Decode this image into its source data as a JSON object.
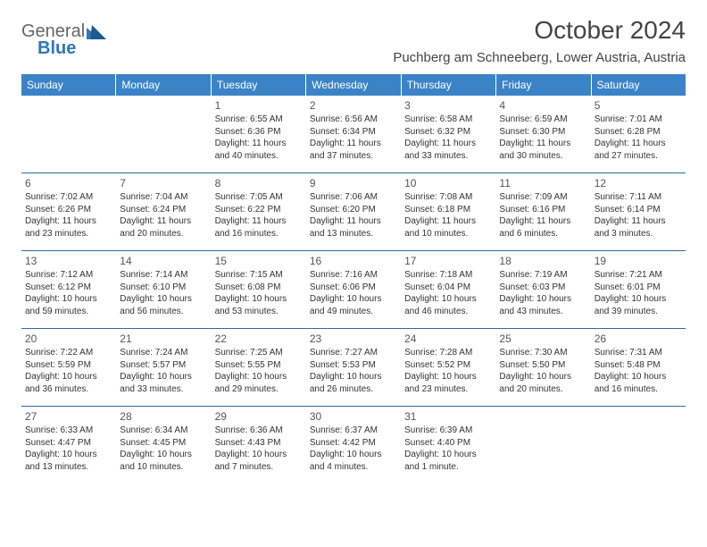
{
  "logo": {
    "word1": "General",
    "word2": "Blue"
  },
  "title": "October 2024",
  "location": "Puchberg am Schneeberg, Lower Austria, Austria",
  "colors": {
    "header_bg": "#3b83c7",
    "header_text": "#ffffff",
    "rule": "#2f6aa8",
    "body_text": "#333333",
    "logo_gray": "#707070",
    "logo_blue": "#2f77bb"
  },
  "weekdays": [
    "Sunday",
    "Monday",
    "Tuesday",
    "Wednesday",
    "Thursday",
    "Friday",
    "Saturday"
  ],
  "weeks": [
    [
      null,
      null,
      {
        "n": "1",
        "sr": "Sunrise: 6:55 AM",
        "ss": "Sunset: 6:36 PM",
        "d1": "Daylight: 11 hours",
        "d2": "and 40 minutes."
      },
      {
        "n": "2",
        "sr": "Sunrise: 6:56 AM",
        "ss": "Sunset: 6:34 PM",
        "d1": "Daylight: 11 hours",
        "d2": "and 37 minutes."
      },
      {
        "n": "3",
        "sr": "Sunrise: 6:58 AM",
        "ss": "Sunset: 6:32 PM",
        "d1": "Daylight: 11 hours",
        "d2": "and 33 minutes."
      },
      {
        "n": "4",
        "sr": "Sunrise: 6:59 AM",
        "ss": "Sunset: 6:30 PM",
        "d1": "Daylight: 11 hours",
        "d2": "and 30 minutes."
      },
      {
        "n": "5",
        "sr": "Sunrise: 7:01 AM",
        "ss": "Sunset: 6:28 PM",
        "d1": "Daylight: 11 hours",
        "d2": "and 27 minutes."
      }
    ],
    [
      {
        "n": "6",
        "sr": "Sunrise: 7:02 AM",
        "ss": "Sunset: 6:26 PM",
        "d1": "Daylight: 11 hours",
        "d2": "and 23 minutes."
      },
      {
        "n": "7",
        "sr": "Sunrise: 7:04 AM",
        "ss": "Sunset: 6:24 PM",
        "d1": "Daylight: 11 hours",
        "d2": "and 20 minutes."
      },
      {
        "n": "8",
        "sr": "Sunrise: 7:05 AM",
        "ss": "Sunset: 6:22 PM",
        "d1": "Daylight: 11 hours",
        "d2": "and 16 minutes."
      },
      {
        "n": "9",
        "sr": "Sunrise: 7:06 AM",
        "ss": "Sunset: 6:20 PM",
        "d1": "Daylight: 11 hours",
        "d2": "and 13 minutes."
      },
      {
        "n": "10",
        "sr": "Sunrise: 7:08 AM",
        "ss": "Sunset: 6:18 PM",
        "d1": "Daylight: 11 hours",
        "d2": "and 10 minutes."
      },
      {
        "n": "11",
        "sr": "Sunrise: 7:09 AM",
        "ss": "Sunset: 6:16 PM",
        "d1": "Daylight: 11 hours",
        "d2": "and 6 minutes."
      },
      {
        "n": "12",
        "sr": "Sunrise: 7:11 AM",
        "ss": "Sunset: 6:14 PM",
        "d1": "Daylight: 11 hours",
        "d2": "and 3 minutes."
      }
    ],
    [
      {
        "n": "13",
        "sr": "Sunrise: 7:12 AM",
        "ss": "Sunset: 6:12 PM",
        "d1": "Daylight: 10 hours",
        "d2": "and 59 minutes."
      },
      {
        "n": "14",
        "sr": "Sunrise: 7:14 AM",
        "ss": "Sunset: 6:10 PM",
        "d1": "Daylight: 10 hours",
        "d2": "and 56 minutes."
      },
      {
        "n": "15",
        "sr": "Sunrise: 7:15 AM",
        "ss": "Sunset: 6:08 PM",
        "d1": "Daylight: 10 hours",
        "d2": "and 53 minutes."
      },
      {
        "n": "16",
        "sr": "Sunrise: 7:16 AM",
        "ss": "Sunset: 6:06 PM",
        "d1": "Daylight: 10 hours",
        "d2": "and 49 minutes."
      },
      {
        "n": "17",
        "sr": "Sunrise: 7:18 AM",
        "ss": "Sunset: 6:04 PM",
        "d1": "Daylight: 10 hours",
        "d2": "and 46 minutes."
      },
      {
        "n": "18",
        "sr": "Sunrise: 7:19 AM",
        "ss": "Sunset: 6:03 PM",
        "d1": "Daylight: 10 hours",
        "d2": "and 43 minutes."
      },
      {
        "n": "19",
        "sr": "Sunrise: 7:21 AM",
        "ss": "Sunset: 6:01 PM",
        "d1": "Daylight: 10 hours",
        "d2": "and 39 minutes."
      }
    ],
    [
      {
        "n": "20",
        "sr": "Sunrise: 7:22 AM",
        "ss": "Sunset: 5:59 PM",
        "d1": "Daylight: 10 hours",
        "d2": "and 36 minutes."
      },
      {
        "n": "21",
        "sr": "Sunrise: 7:24 AM",
        "ss": "Sunset: 5:57 PM",
        "d1": "Daylight: 10 hours",
        "d2": "and 33 minutes."
      },
      {
        "n": "22",
        "sr": "Sunrise: 7:25 AM",
        "ss": "Sunset: 5:55 PM",
        "d1": "Daylight: 10 hours",
        "d2": "and 29 minutes."
      },
      {
        "n": "23",
        "sr": "Sunrise: 7:27 AM",
        "ss": "Sunset: 5:53 PM",
        "d1": "Daylight: 10 hours",
        "d2": "and 26 minutes."
      },
      {
        "n": "24",
        "sr": "Sunrise: 7:28 AM",
        "ss": "Sunset: 5:52 PM",
        "d1": "Daylight: 10 hours",
        "d2": "and 23 minutes."
      },
      {
        "n": "25",
        "sr": "Sunrise: 7:30 AM",
        "ss": "Sunset: 5:50 PM",
        "d1": "Daylight: 10 hours",
        "d2": "and 20 minutes."
      },
      {
        "n": "26",
        "sr": "Sunrise: 7:31 AM",
        "ss": "Sunset: 5:48 PM",
        "d1": "Daylight: 10 hours",
        "d2": "and 16 minutes."
      }
    ],
    [
      {
        "n": "27",
        "sr": "Sunrise: 6:33 AM",
        "ss": "Sunset: 4:47 PM",
        "d1": "Daylight: 10 hours",
        "d2": "and 13 minutes."
      },
      {
        "n": "28",
        "sr": "Sunrise: 6:34 AM",
        "ss": "Sunset: 4:45 PM",
        "d1": "Daylight: 10 hours",
        "d2": "and 10 minutes."
      },
      {
        "n": "29",
        "sr": "Sunrise: 6:36 AM",
        "ss": "Sunset: 4:43 PM",
        "d1": "Daylight: 10 hours",
        "d2": "and 7 minutes."
      },
      {
        "n": "30",
        "sr": "Sunrise: 6:37 AM",
        "ss": "Sunset: 4:42 PM",
        "d1": "Daylight: 10 hours",
        "d2": "and 4 minutes."
      },
      {
        "n": "31",
        "sr": "Sunrise: 6:39 AM",
        "ss": "Sunset: 4:40 PM",
        "d1": "Daylight: 10 hours",
        "d2": "and 1 minute."
      },
      null,
      null
    ]
  ]
}
